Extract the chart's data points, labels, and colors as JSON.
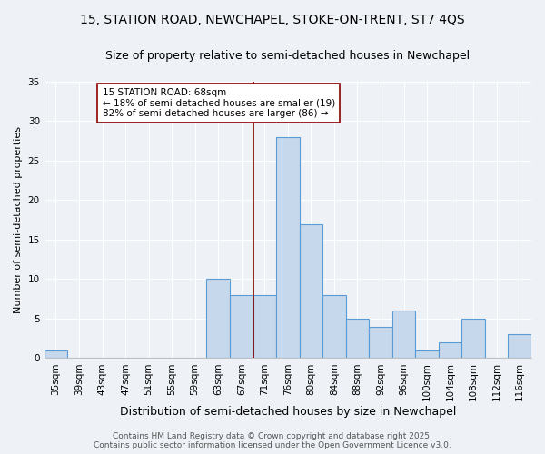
{
  "title_line1": "15, STATION ROAD, NEWCHAPEL, STOKE-ON-TRENT, ST7 4QS",
  "title_line2": "Size of property relative to semi-detached houses in Newchapel",
  "xlabel": "Distribution of semi-detached houses by size in Newchapel",
  "ylabel": "Number of semi-detached properties",
  "categories": [
    "35sqm",
    "39sqm",
    "43sqm",
    "47sqm",
    "51sqm",
    "55sqm",
    "59sqm",
    "63sqm",
    "67sqm",
    "71sqm",
    "76sqm",
    "80sqm",
    "84sqm",
    "88sqm",
    "92sqm",
    "96sqm",
    "100sqm",
    "104sqm",
    "108sqm",
    "112sqm",
    "116sqm"
  ],
  "values": [
    1,
    0,
    0,
    0,
    0,
    0,
    0,
    10,
    8,
    8,
    28,
    17,
    8,
    5,
    4,
    6,
    1,
    2,
    5,
    0,
    3
  ],
  "bar_color": "#c5d8ec",
  "bar_edge_color": "#5b9bd5",
  "vline_color": "#8b0000",
  "annotation_text": "15 STATION ROAD: 68sqm\n← 18% of semi-detached houses are smaller (19)\n82% of semi-detached houses are larger (86) →",
  "annotation_box_color": "#ffffff",
  "annotation_box_edge_color": "#8b0000",
  "ylim": [
    0,
    35
  ],
  "yticks": [
    0,
    5,
    10,
    15,
    20,
    25,
    30,
    35
  ],
  "background_color": "#eef2f7",
  "grid_color": "#ffffff",
  "footer_text": "Contains HM Land Registry data © Crown copyright and database right 2025.\nContains public sector information licensed under the Open Government Licence v3.0.",
  "title_fontsize": 10,
  "subtitle_fontsize": 9,
  "xlabel_fontsize": 9,
  "ylabel_fontsize": 8,
  "tick_fontsize": 7.5,
  "annotation_fontsize": 7.5,
  "footer_fontsize": 6.5
}
